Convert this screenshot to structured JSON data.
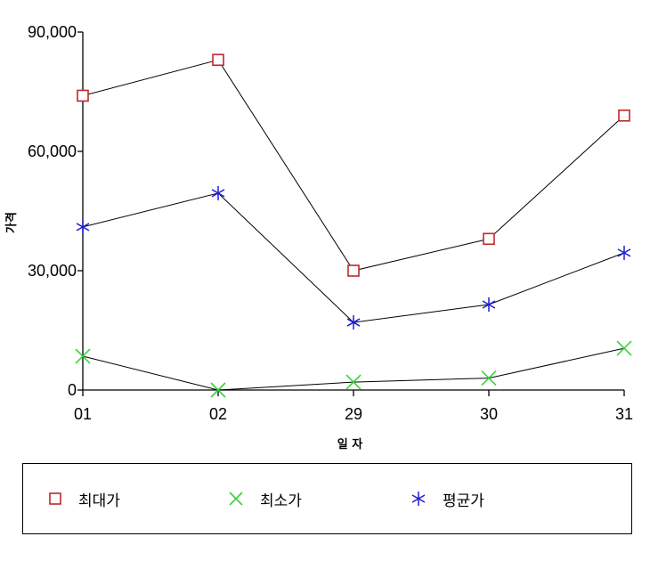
{
  "chart_data": {
    "type": "line",
    "categories": [
      "01",
      "02",
      "29",
      "30",
      "31"
    ],
    "series": [
      {
        "name": "최대가",
        "values": [
          74000,
          83000,
          30000,
          38000,
          69000
        ],
        "marker": "square",
        "color": "#c0262d"
      },
      {
        "name": "최소가",
        "values": [
          8500,
          0,
          2000,
          3000,
          10500
        ],
        "marker": "x",
        "color": "#3ad13a"
      },
      {
        "name": "평균가",
        "values": [
          41000,
          49500,
          17000,
          21500,
          34500
        ],
        "marker": "asterisk",
        "color": "#1c1cd6"
      }
    ],
    "ylim": [
      0,
      90000
    ],
    "yticks": [
      0,
      30000,
      60000,
      90000
    ],
    "ytick_labels": [
      "0",
      "30,000",
      "60,000",
      "90,000"
    ],
    "xlabel": "일 자",
    "ylabel": "가격",
    "line_color": "#000000",
    "legend_position": "bottom",
    "grid": false
  }
}
